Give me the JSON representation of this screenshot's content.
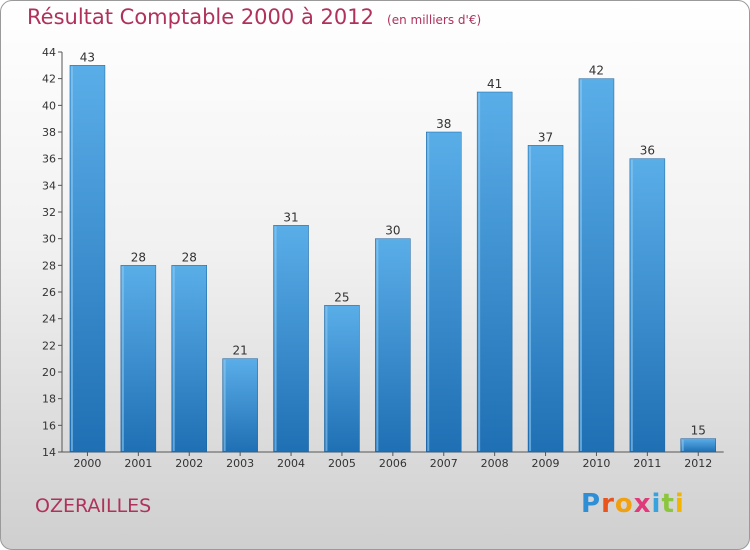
{
  "header": {
    "title": "Résultat Comptable 2000 à 2012",
    "subtitle": "(en milliers d'€)"
  },
  "footer": {
    "place": "OZERAILLES",
    "logo": [
      "P",
      "r",
      "o",
      "x",
      "i",
      "t",
      "i"
    ],
    "logo_colors": [
      "#2e8fd6",
      "#e8541c",
      "#f0a010",
      "#e03a7a",
      "#36a3df",
      "#8cc63f",
      "#f2b400"
    ]
  },
  "colors": {
    "bar_light": "#5aaee8",
    "bar_dark": "#1f6fb4",
    "title": "#b0325a"
  },
  "chart_data": {
    "type": "bar",
    "title": "Résultat Comptable 2000 à 2012",
    "subtitle": "(en milliers d'€)",
    "categories": [
      "2000",
      "2001",
      "2002",
      "2003",
      "2004",
      "2005",
      "2006",
      "2007",
      "2008",
      "2009",
      "2010",
      "2011",
      "2012"
    ],
    "values": [
      43,
      28,
      28,
      21,
      31,
      25,
      30,
      38,
      41,
      37,
      42,
      36,
      15
    ],
    "ylim": [
      14,
      44
    ],
    "yticks": [
      14,
      16,
      18,
      20,
      22,
      24,
      26,
      28,
      30,
      32,
      34,
      36,
      38,
      40,
      42,
      44
    ],
    "grid": false,
    "data_labels": true
  }
}
